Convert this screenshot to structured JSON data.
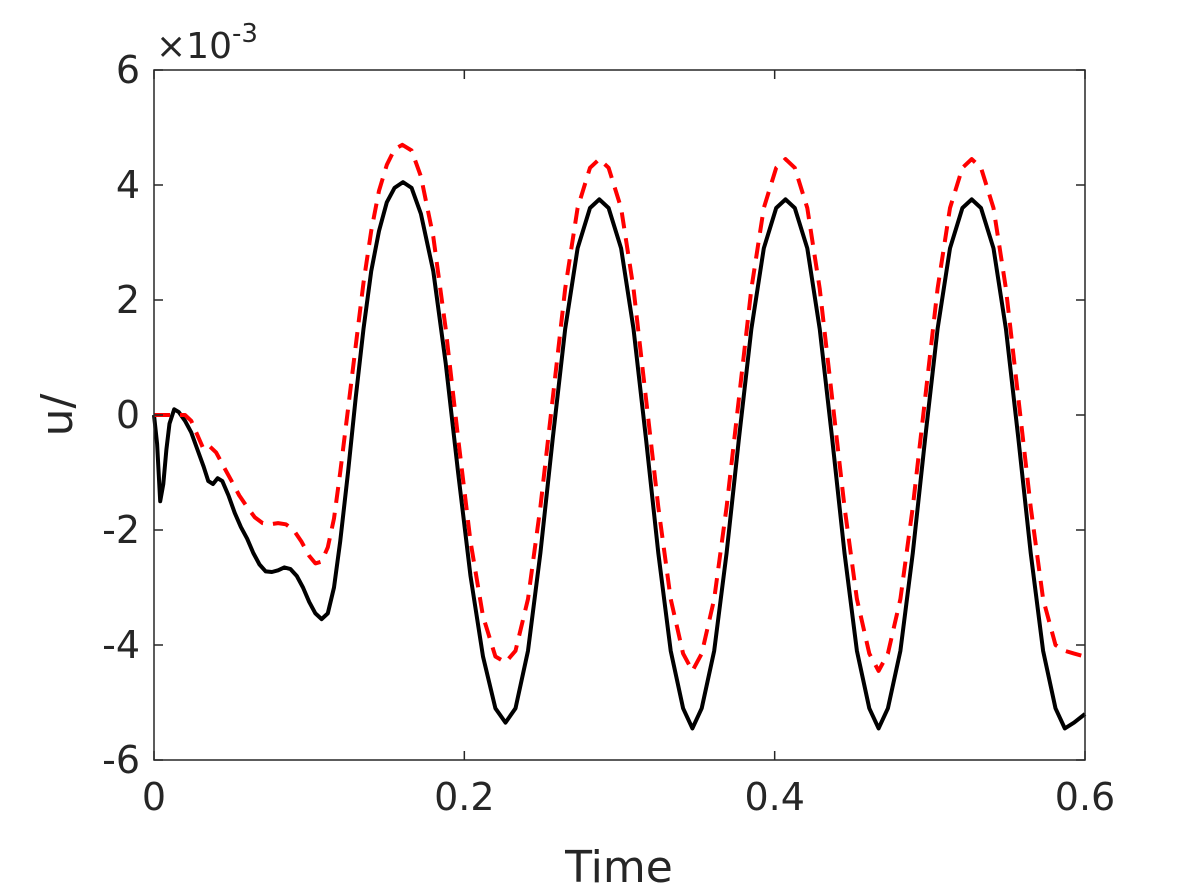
{
  "chart_data": {
    "type": "line",
    "title": "",
    "xlabel": "Time",
    "ylabel": "u/",
    "y_multiplier": "×10",
    "y_multiplier_exponent": "-3",
    "xlim": [
      0,
      0.6
    ],
    "ylim": [
      -6,
      6
    ],
    "x_ticks": [
      0,
      0.2,
      0.4,
      0.6
    ],
    "x_tick_labels": [
      "0",
      "0.2",
      "0.4",
      "0.6"
    ],
    "y_ticks": [
      -6,
      -4,
      -2,
      0,
      2,
      4,
      6
    ],
    "y_tick_labels": [
      "-6",
      "-4",
      "-2",
      "0",
      "2",
      "4",
      "6"
    ],
    "grid": false,
    "legend": "none",
    "series": [
      {
        "color": "#000000",
        "style": "solid",
        "points": [
          [
            0,
            0.0
          ],
          [
            0.002,
            -0.5
          ],
          [
            0.004,
            -1.5
          ],
          [
            0.006,
            -1.2
          ],
          [
            0.008,
            -0.6
          ],
          [
            0.01,
            -0.15
          ],
          [
            0.013,
            0.1
          ],
          [
            0.016,
            0.05
          ],
          [
            0.02,
            -0.1
          ],
          [
            0.024,
            -0.3
          ],
          [
            0.028,
            -0.6
          ],
          [
            0.032,
            -0.9
          ],
          [
            0.035,
            -1.15
          ],
          [
            0.038,
            -1.2
          ],
          [
            0.041,
            -1.1
          ],
          [
            0.044,
            -1.15
          ],
          [
            0.048,
            -1.4
          ],
          [
            0.052,
            -1.7
          ],
          [
            0.056,
            -1.95
          ],
          [
            0.06,
            -2.15
          ],
          [
            0.064,
            -2.4
          ],
          [
            0.068,
            -2.6
          ],
          [
            0.072,
            -2.72
          ],
          [
            0.076,
            -2.73
          ],
          [
            0.08,
            -2.7
          ],
          [
            0.084,
            -2.65
          ],
          [
            0.088,
            -2.68
          ],
          [
            0.092,
            -2.8
          ],
          [
            0.096,
            -3.0
          ],
          [
            0.1,
            -3.25
          ],
          [
            0.104,
            -3.45
          ],
          [
            0.108,
            -3.55
          ],
          [
            0.112,
            -3.45
          ],
          [
            0.116,
            -3.0
          ],
          [
            0.12,
            -2.2
          ],
          [
            0.125,
            -1.0
          ],
          [
            0.13,
            0.3
          ],
          [
            0.135,
            1.5
          ],
          [
            0.14,
            2.5
          ],
          [
            0.145,
            3.2
          ],
          [
            0.15,
            3.7
          ],
          [
            0.155,
            3.95
          ],
          [
            0.1605,
            4.05
          ],
          [
            0.166,
            3.95
          ],
          [
            0.172,
            3.5
          ],
          [
            0.18,
            2.5
          ],
          [
            0.188,
            0.9
          ],
          [
            0.196,
            -1.0
          ],
          [
            0.204,
            -2.8
          ],
          [
            0.212,
            -4.2
          ],
          [
            0.22,
            -5.1
          ],
          [
            0.2265,
            -5.35
          ],
          [
            0.233,
            -5.1
          ],
          [
            0.241,
            -4.1
          ],
          [
            0.249,
            -2.4
          ],
          [
            0.257,
            -0.4
          ],
          [
            0.265,
            1.5
          ],
          [
            0.273,
            2.9
          ],
          [
            0.281,
            3.6
          ],
          [
            0.287,
            3.75
          ],
          [
            0.293,
            3.6
          ],
          [
            0.301,
            2.9
          ],
          [
            0.309,
            1.5
          ],
          [
            0.317,
            -0.4
          ],
          [
            0.325,
            -2.4
          ],
          [
            0.333,
            -4.1
          ],
          [
            0.341,
            -5.1
          ],
          [
            0.347,
            -5.45
          ],
          [
            0.353,
            -5.1
          ],
          [
            0.361,
            -4.1
          ],
          [
            0.369,
            -2.4
          ],
          [
            0.377,
            -0.4
          ],
          [
            0.385,
            1.5
          ],
          [
            0.393,
            2.9
          ],
          [
            0.401,
            3.6
          ],
          [
            0.407,
            3.75
          ],
          [
            0.413,
            3.6
          ],
          [
            0.421,
            2.9
          ],
          [
            0.429,
            1.5
          ],
          [
            0.437,
            -0.4
          ],
          [
            0.445,
            -2.4
          ],
          [
            0.453,
            -4.1
          ],
          [
            0.461,
            -5.1
          ],
          [
            0.467,
            -5.45
          ],
          [
            0.473,
            -5.1
          ],
          [
            0.481,
            -4.1
          ],
          [
            0.489,
            -2.4
          ],
          [
            0.497,
            -0.4
          ],
          [
            0.505,
            1.5
          ],
          [
            0.513,
            2.9
          ],
          [
            0.521,
            3.6
          ],
          [
            0.527,
            3.75
          ],
          [
            0.533,
            3.6
          ],
          [
            0.541,
            2.9
          ],
          [
            0.549,
            1.5
          ],
          [
            0.557,
            -0.4
          ],
          [
            0.565,
            -2.4
          ],
          [
            0.573,
            -4.1
          ],
          [
            0.581,
            -5.1
          ],
          [
            0.587,
            -5.45
          ],
          [
            0.593,
            -5.35
          ],
          [
            0.6,
            -5.2
          ]
        ]
      },
      {
        "color": "#ff0000",
        "style": "dashed",
        "points": [
          [
            0,
            0.0
          ],
          [
            0.01,
            0.0
          ],
          [
            0.02,
            0.0
          ],
          [
            0.024,
            -0.1
          ],
          [
            0.028,
            -0.35
          ],
          [
            0.032,
            -0.6
          ],
          [
            0.036,
            -0.55
          ],
          [
            0.04,
            -0.65
          ],
          [
            0.045,
            -0.9
          ],
          [
            0.05,
            -1.15
          ],
          [
            0.055,
            -1.4
          ],
          [
            0.06,
            -1.6
          ],
          [
            0.065,
            -1.78
          ],
          [
            0.07,
            -1.88
          ],
          [
            0.075,
            -1.9
          ],
          [
            0.08,
            -1.88
          ],
          [
            0.085,
            -1.9
          ],
          [
            0.09,
            -2.0
          ],
          [
            0.095,
            -2.2
          ],
          [
            0.1,
            -2.45
          ],
          [
            0.104,
            -2.58
          ],
          [
            0.108,
            -2.55
          ],
          [
            0.112,
            -2.3
          ],
          [
            0.116,
            -1.8
          ],
          [
            0.12,
            -1.0
          ],
          [
            0.125,
            0.1
          ],
          [
            0.13,
            1.2
          ],
          [
            0.135,
            2.3
          ],
          [
            0.14,
            3.2
          ],
          [
            0.145,
            3.9
          ],
          [
            0.15,
            4.35
          ],
          [
            0.155,
            4.62
          ],
          [
            0.16,
            4.7
          ],
          [
            0.166,
            4.6
          ],
          [
            0.172,
            4.15
          ],
          [
            0.18,
            3.1
          ],
          [
            0.188,
            1.5
          ],
          [
            0.196,
            -0.4
          ],
          [
            0.204,
            -2.2
          ],
          [
            0.212,
            -3.5
          ],
          [
            0.22,
            -4.2
          ],
          [
            0.2265,
            -4.3
          ],
          [
            0.233,
            -4.1
          ],
          [
            0.241,
            -3.2
          ],
          [
            0.249,
            -1.6
          ],
          [
            0.257,
            0.3
          ],
          [
            0.265,
            2.2
          ],
          [
            0.273,
            3.6
          ],
          [
            0.281,
            4.3
          ],
          [
            0.287,
            4.45
          ],
          [
            0.293,
            4.3
          ],
          [
            0.301,
            3.6
          ],
          [
            0.309,
            2.2
          ],
          [
            0.317,
            0.3
          ],
          [
            0.325,
            -1.6
          ],
          [
            0.333,
            -3.2
          ],
          [
            0.341,
            -4.15
          ],
          [
            0.347,
            -4.45
          ],
          [
            0.353,
            -4.15
          ],
          [
            0.361,
            -3.2
          ],
          [
            0.369,
            -1.6
          ],
          [
            0.377,
            0.3
          ],
          [
            0.385,
            2.2
          ],
          [
            0.393,
            3.6
          ],
          [
            0.401,
            4.3
          ],
          [
            0.407,
            4.45
          ],
          [
            0.413,
            4.3
          ],
          [
            0.421,
            3.6
          ],
          [
            0.429,
            2.2
          ],
          [
            0.437,
            0.3
          ],
          [
            0.445,
            -1.6
          ],
          [
            0.453,
            -3.2
          ],
          [
            0.461,
            -4.15
          ],
          [
            0.467,
            -4.45
          ],
          [
            0.473,
            -4.15
          ],
          [
            0.481,
            -3.2
          ],
          [
            0.489,
            -1.6
          ],
          [
            0.497,
            0.3
          ],
          [
            0.505,
            2.2
          ],
          [
            0.513,
            3.6
          ],
          [
            0.521,
            4.3
          ],
          [
            0.527,
            4.45
          ],
          [
            0.533,
            4.3
          ],
          [
            0.541,
            3.6
          ],
          [
            0.549,
            2.2
          ],
          [
            0.557,
            0.3
          ],
          [
            0.565,
            -1.6
          ],
          [
            0.573,
            -3.2
          ],
          [
            0.581,
            -4.0
          ],
          [
            0.587,
            -4.1
          ],
          [
            0.593,
            -4.15
          ],
          [
            0.6,
            -4.2
          ]
        ]
      }
    ]
  }
}
